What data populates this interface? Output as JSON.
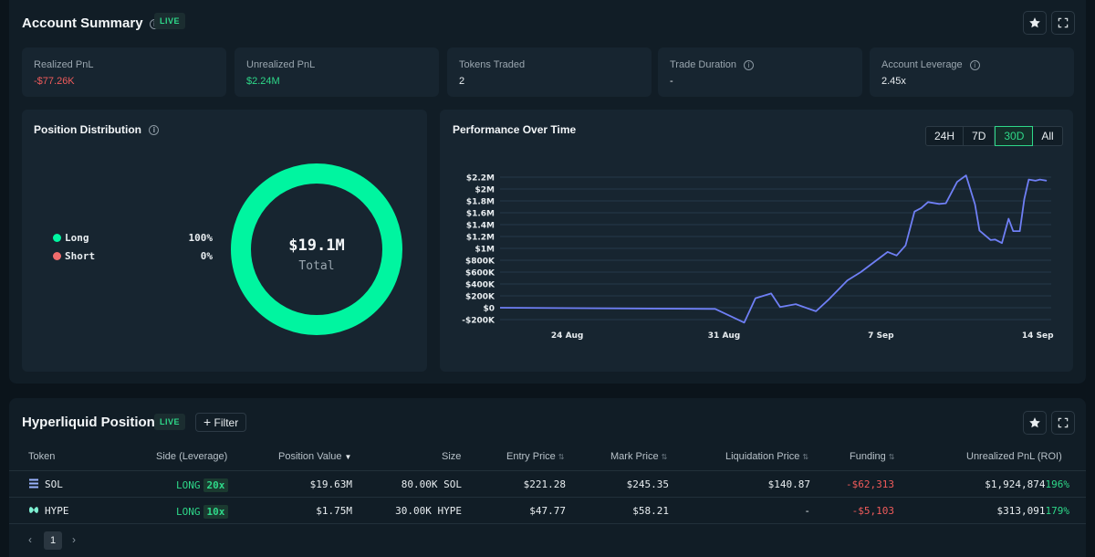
{
  "summary": {
    "title": "Account Summary",
    "live_badge": "LIVE",
    "stats": [
      {
        "label": "Realized PnL",
        "value": "-$77.26K",
        "tone": "negative"
      },
      {
        "label": "Unrealized PnL",
        "value": "$2.24M",
        "tone": "positive"
      },
      {
        "label": "Tokens Traded",
        "value": "2",
        "tone": "neutral"
      },
      {
        "label": "Trade Duration",
        "value": "-",
        "tone": "neutral"
      },
      {
        "label": "Account Leverage",
        "value": "2.45x",
        "tone": "neutral"
      }
    ]
  },
  "distribution": {
    "title": "Position Distribution",
    "total_value": "$19.1M",
    "total_label": "Total",
    "legend": [
      {
        "label": "Long",
        "pct": "100%",
        "color": "#00f5a0"
      },
      {
        "label": "Short",
        "pct": "0%",
        "color": "#f06c6c"
      }
    ]
  },
  "performance": {
    "title": "Performance Over Time",
    "ranges": [
      "24H",
      "7D",
      "30D",
      "All"
    ],
    "active_range": "30D"
  },
  "chart_data": {
    "type": "line",
    "title": "Performance Over Time",
    "xlabel": "",
    "ylabel": "",
    "x_ticks": [
      "24 Aug",
      "31 Aug",
      "7 Sep",
      "14 Sep"
    ],
    "y_ticks": [
      "$2.2M",
      "$2M",
      "$1.8M",
      "$1.6M",
      "$1.4M",
      "$1.2M",
      "$1M",
      "$800K",
      "$600K",
      "$400K",
      "$200K",
      "$0",
      "-$200K"
    ],
    "ylim": [
      -200000,
      2200000
    ],
    "series": [
      {
        "name": "PnL",
        "color": "#6f7ff5",
        "x": [
          0,
          9.6,
          10.9,
          11.4,
          12.1,
          12.5,
          13.2,
          14.1,
          14.7,
          15.5,
          16.1,
          17.3,
          17.7,
          18.1,
          18.5,
          18.8,
          19.1,
          19.6,
          19.9,
          20.4,
          20.8,
          21.2,
          21.4,
          21.9,
          22.1,
          22.4,
          22.7,
          22.9,
          23.2,
          23.4,
          23.6,
          23.9,
          24.1,
          24.4
        ],
        "values": [
          0,
          -20000,
          -250000,
          160000,
          240000,
          10000,
          60000,
          -60000,
          150000,
          460000,
          600000,
          940000,
          880000,
          1050000,
          1620000,
          1680000,
          1780000,
          1750000,
          1760000,
          2120000,
          2230000,
          1740000,
          1300000,
          1140000,
          1150000,
          1090000,
          1500000,
          1290000,
          1290000,
          1830000,
          2160000,
          2140000,
          2160000,
          2140000
        ]
      }
    ]
  },
  "positions": {
    "title": "Hyperliquid Positions",
    "live_badge": "LIVE",
    "filter_label": "Filter",
    "columns": [
      "Token",
      "Side (Leverage)",
      "Position Value",
      "Size",
      "Entry Price",
      "Mark Price",
      "Liquidation Price",
      "Funding",
      "Unrealized PnL (ROI)"
    ],
    "rows": [
      {
        "token": "SOL",
        "side": "LONG",
        "leverage": "20x",
        "position_value": "$19.63M",
        "size": "80.00K SOL",
        "entry_price": "$221.28",
        "mark_price": "$245.35",
        "liquidation_price": "$140.87",
        "funding": "-$62,313",
        "unrealized_pnl": "$1,924,874",
        "roi": "196%"
      },
      {
        "token": "HYPE",
        "side": "LONG",
        "leverage": "10x",
        "position_value": "$1.75M",
        "size": "30.00K HYPE",
        "entry_price": "$47.77",
        "mark_price": "$58.21",
        "liquidation_price": "-",
        "funding": "-$5,103",
        "unrealized_pnl": "$313,091",
        "roi": "179%"
      }
    ],
    "pagination": {
      "prev": "‹",
      "current": "1",
      "next": "›"
    }
  }
}
